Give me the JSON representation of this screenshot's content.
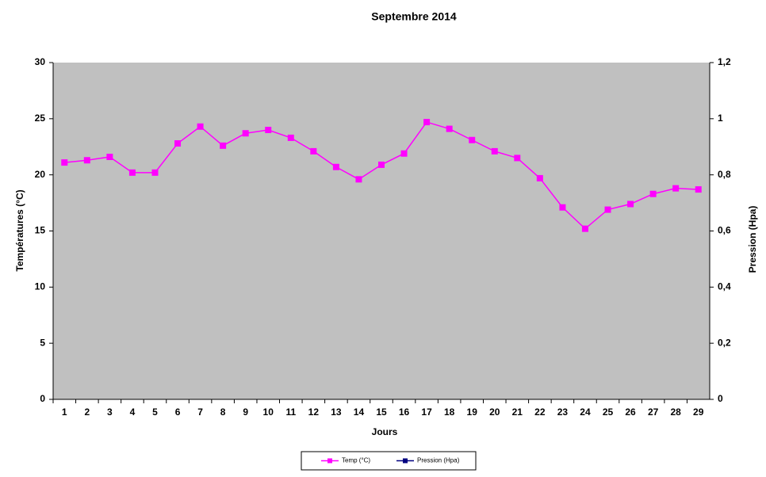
{
  "chart_data": {
    "type": "line",
    "title": "Septembre 2014",
    "x_label": "Jours",
    "y_label": "Températures (°C)",
    "y2_label": "Pression (Hpa)",
    "categories": [
      "1",
      "2",
      "3",
      "4",
      "5",
      "6",
      "7",
      "8",
      "9",
      "10",
      "11",
      "12",
      "13",
      "14",
      "15",
      "16",
      "17",
      "18",
      "19",
      "20",
      "21",
      "22",
      "23",
      "24",
      "25",
      "26",
      "27",
      "28",
      "29"
    ],
    "series": [
      {
        "name": "Temp (°C)",
        "color": "#ff00ff",
        "values": [
          21.1,
          21.3,
          21.6,
          20.2,
          20.2,
          22.8,
          24.3,
          22.6,
          23.7,
          24.0,
          23.3,
          22.1,
          20.7,
          19.6,
          20.9,
          21.9,
          24.7,
          24.1,
          23.1,
          22.1,
          21.5,
          19.7,
          17.1,
          15.2,
          16.9,
          17.4,
          18.3,
          18.8,
          18.7
        ]
      },
      {
        "name": "Pression (Hpa)",
        "color": "#000080",
        "axis": "y2",
        "values": [
          null,
          null,
          null,
          null,
          null,
          null,
          null,
          null,
          null,
          null,
          null,
          null,
          null,
          null,
          null,
          null,
          null,
          null,
          null,
          null,
          null,
          null,
          null,
          null,
          null,
          null,
          null,
          null,
          null
        ]
      }
    ],
    "ylim": [
      0,
      30
    ],
    "yticks": [
      0,
      5,
      10,
      15,
      20,
      25,
      30
    ],
    "y2lim": [
      0,
      1.2
    ],
    "y2ticks": [
      0,
      {
        "value": 0.2,
        "label": "0,2"
      },
      {
        "value": 0.4,
        "label": "0,4"
      },
      {
        "value": 0.6,
        "label": "0,6"
      },
      {
        "value": 0.8,
        "label": "0,8"
      },
      1,
      {
        "value": 1.2,
        "label": "1,2"
      }
    ],
    "plot_background": "#c0c0c0",
    "legend": "bottom"
  }
}
